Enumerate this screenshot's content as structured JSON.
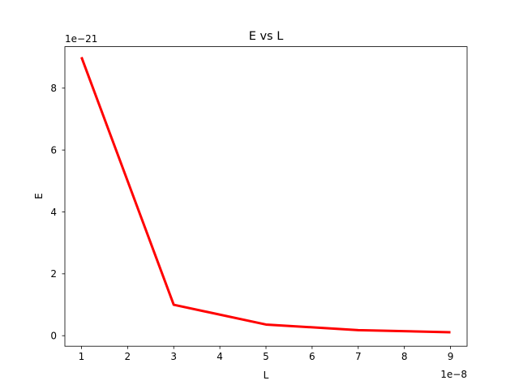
{
  "chart_data": {
    "type": "line",
    "title": "E vs L",
    "xlabel": "L",
    "ylabel": "E",
    "x_offset_label": "1e−8",
    "y_offset_label": "1e−21",
    "x_scale_factor": 1e-08,
    "y_scale_factor": 1e-21,
    "xlim": [
      0.64,
      9.36
    ],
    "ylim": [
      -0.34,
      9.34
    ],
    "x_ticks": [
      1,
      2,
      3,
      4,
      5,
      6,
      7,
      8,
      9
    ],
    "x_tick_labels": [
      "1",
      "2",
      "3",
      "4",
      "5",
      "6",
      "7",
      "8",
      "9"
    ],
    "y_ticks": [
      0,
      2,
      4,
      6,
      8
    ],
    "y_tick_labels": [
      "0",
      "2",
      "4",
      "6",
      "8"
    ],
    "grid": false,
    "series": [
      {
        "color": "#ff0000",
        "x": [
          1,
          3,
          5,
          7,
          9
        ],
        "y": [
          9.0,
          1.0,
          0.36,
          0.18,
          0.11
        ]
      }
    ]
  }
}
